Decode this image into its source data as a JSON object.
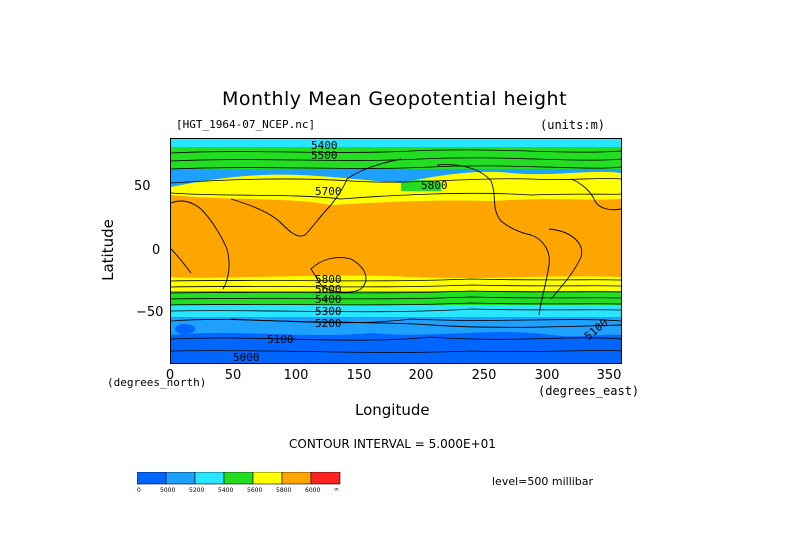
{
  "title": "Monthly Mean Geopotential height",
  "dataset": "[HGT_1964-07_NCEP.nc]",
  "units": "(units:m)",
  "x_axis": {
    "label": "Longitude",
    "unit_label": "(degrees_east)",
    "ticks": [
      "0",
      "50",
      "100",
      "150",
      "200",
      "250",
      "300",
      "350"
    ]
  },
  "y_axis": {
    "label": "Latitude",
    "unit_label": "(degrees_north)",
    "ticks": [
      "50",
      "0",
      "−50"
    ]
  },
  "contour_interval": "CONTOUR INTERVAL = 5.000E+01",
  "level": "level=500 millibar",
  "contour_labels": [
    "5400",
    "5500",
    "5700",
    "5800",
    "5800",
    "5600",
    "5400",
    "5300",
    "5200",
    "5100",
    "5100",
    "5000"
  ],
  "colorbar": {
    "labels": [
      "0",
      "5000",
      "5200",
      "5400",
      "5600",
      "5800",
      "6000",
      "∞"
    ],
    "colors": [
      "#0066ff",
      "#1ea0ff",
      "#28e6ff",
      "#22dd22",
      "#ffff00",
      "#ffa500",
      "#ff2222"
    ]
  },
  "colors": {
    "band_5000": "#0066ff",
    "band_5200": "#1ea0ff",
    "band_5400": "#28e6ff",
    "band_5600": "#22dd22",
    "band_5800": "#ffff00",
    "band_6000": "#ffa500",
    "band_top": "#ff2222"
  }
}
